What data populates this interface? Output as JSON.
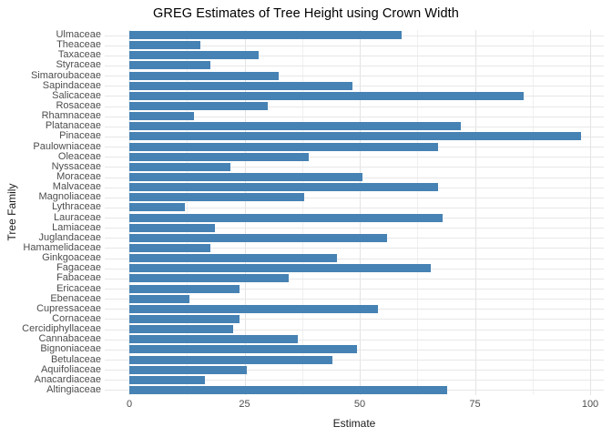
{
  "chart_data": {
    "type": "bar",
    "orientation": "horizontal",
    "title": "GREG Estimates of Tree Height using Crown Width",
    "xlabel": "Estimate",
    "ylabel": "Tree Family",
    "xlim": [
      0,
      100
    ],
    "x_ticks": [
      {
        "value": 0,
        "label": "0"
      },
      {
        "value": 25,
        "label": "25"
      },
      {
        "value": 50,
        "label": "50"
      },
      {
        "value": 75,
        "label": "75"
      },
      {
        "value": 100,
        "label": "100"
      }
    ],
    "x_minor_ticks": [
      12.5,
      37.5,
      62.5,
      87.5
    ],
    "grid": "major and minor vertical gridlines, horizontal line per category",
    "legend": false,
    "bar_color": "#4682b4",
    "categories": [
      "Ulmaceae",
      "Theaceae",
      "Taxaceae",
      "Styraceae",
      "Simaroubaceae",
      "Sapindaceae",
      "Salicaceae",
      "Rosaceae",
      "Rhamnaceae",
      "Platanaceae",
      "Pinaceae",
      "Paulowniaceae",
      "Oleaceae",
      "Nyssaceae",
      "Moraceae",
      "Malvaceae",
      "Magnoliaceae",
      "Lythraceae",
      "Lauraceae",
      "Lamiaceae",
      "Juglandaceae",
      "Hamamelidaceae",
      "Ginkgoaceae",
      "Fagaceae",
      "Fabaceae",
      "Ericaceae",
      "Ebenaceae",
      "Cupressaceae",
      "Cornaceae",
      "Cercidiphyllaceae",
      "Cannabaceae",
      "Bignoniaceae",
      "Betulaceae",
      "Aquifoliaceae",
      "Anacardiaceae",
      "Altingiaceae"
    ],
    "values": [
      59,
      15.5,
      28,
      17.5,
      32.5,
      48.5,
      85.5,
      30,
      14,
      72,
      98,
      67,
      39,
      22,
      50.5,
      67,
      38,
      12,
      68,
      18.5,
      56,
      17.5,
      45,
      65.5,
      34.5,
      24,
      13,
      54,
      24,
      22.5,
      36.5,
      49.5,
      44,
      25.5,
      16.5,
      69
    ]
  },
  "colors": {
    "background": "#ffffff",
    "bar": "#4682b4",
    "grid_major": "#e4e4e4",
    "grid_minor": "#f0f0f0",
    "row_line": "#e7e7e7",
    "tick_text": "#4d4d4d",
    "title_text": "#000000",
    "axis_title_text": "#1a1a1a"
  }
}
